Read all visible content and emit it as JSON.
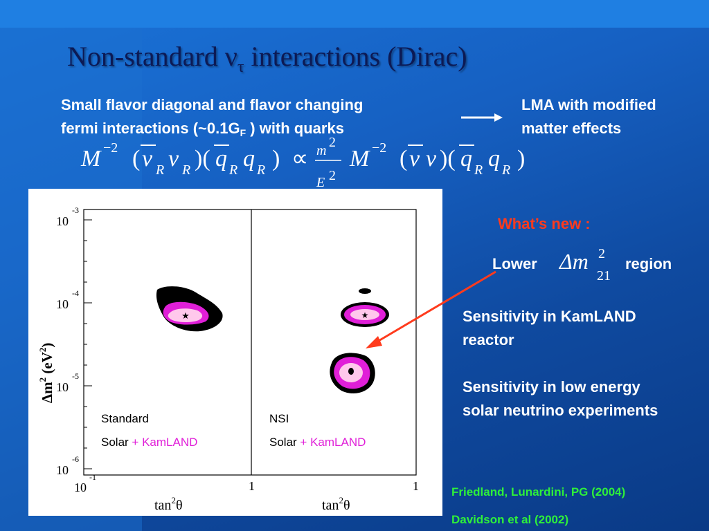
{
  "slide": {
    "title_prefix": "Non-standard ",
    "title_nu": "ν",
    "title_tau": "τ",
    "title_suffix": " interactions (Dirac)"
  },
  "intro": {
    "line1": "Small flavor diagonal and flavor changing",
    "line2_prefix": "fermi interactions (~0.1G",
    "line2_sub": "F",
    "line2_suffix": " ) with quarks"
  },
  "result": {
    "line1": "LMA with modified",
    "line2": "matter effects"
  },
  "equation": {
    "M": "M",
    "exp": "−2",
    "R": "R",
    "propto": "∝",
    "num": "m",
    "two": "2",
    "den": "E"
  },
  "plot": {
    "y_tick_base": "10",
    "y_tick_exps": [
      "-3",
      "-4",
      "-5",
      "-6"
    ],
    "x_tick_base": "10",
    "x_tick_exp": "-1",
    "x_tick_one": "1",
    "x_label_base": "tan",
    "x_label_exp": "2",
    "x_label_theta": "θ",
    "y_label_base": "Δm",
    "y_label_exp": "2",
    "y_label_unit_open": " (eV",
    "y_label_unit_exp": "2",
    "y_label_unit_close": ")",
    "left_panel": {
      "name": "Standard",
      "solar": "Solar",
      "plus": "+",
      "kamland": "KamLAND"
    },
    "right_panel": {
      "name": "NSI",
      "solar": "Solar",
      "plus": "+",
      "kamland": "KamLAND"
    },
    "colors": {
      "outer": "#000000",
      "mid": "#e01fd8",
      "inner": "#ffc8ec",
      "kamland": "#e01fd8"
    }
  },
  "whats_new": "What’s new :",
  "lower": {
    "prefix": "Lower",
    "delta": "Δm",
    "sup": "2",
    "sub": "21",
    "suffix": "region"
  },
  "sensitivity1": {
    "line1": "Sensitivity in KamLAND",
    "line2": "reactor"
  },
  "sensitivity2": {
    "line1": "Sensitivity in low energy",
    "line2": "solar neutrino experiments"
  },
  "references": [
    "Friedland, Lunardini, PG (2004)",
    "Davidson et al (2002)"
  ],
  "colors": {
    "accent_red": "#ff3b1d",
    "reference_green": "#2ef03a",
    "title": "#0c1a55"
  }
}
